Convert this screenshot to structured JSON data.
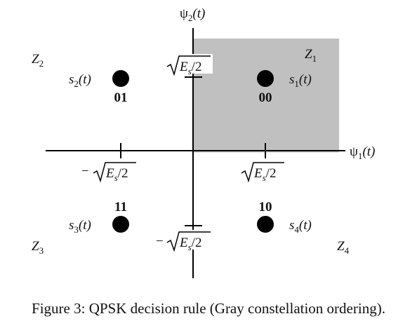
{
  "caption": "Figure 3: QPSK decision rule (Gray constellation ordering).",
  "colors": {
    "region_shade": "#c0c0c0",
    "ink": "#000000"
  },
  "axes": {
    "horizontal": {
      "symbol": "ψ",
      "sub": "1",
      "arg": "(t)"
    },
    "vertical": {
      "symbol": "ψ",
      "sub": "2",
      "arg": "(t)"
    }
  },
  "tick_labels": {
    "pos_x": {
      "sign": "",
      "radicand_E": "E",
      "radicand_sub": "s",
      "radicand_rest": "/2"
    },
    "neg_x": {
      "sign": "−",
      "radicand_E": "E",
      "radicand_sub": "s",
      "radicand_rest": "/2"
    },
    "pos_y": {
      "sign": "",
      "radicand_E": "E",
      "radicand_sub": "s",
      "radicand_rest": "/2"
    },
    "neg_y": {
      "sign": "−",
      "radicand_E": "E",
      "radicand_sub": "s",
      "radicand_rest": "/2"
    }
  },
  "regions": [
    {
      "name": "Z",
      "sub": "1",
      "shaded": true
    },
    {
      "name": "Z",
      "sub": "2",
      "shaded": false
    },
    {
      "name": "Z",
      "sub": "3",
      "shaded": false
    },
    {
      "name": "Z",
      "sub": "4",
      "shaded": false
    }
  ],
  "points": [
    {
      "label": "s",
      "sub": "1",
      "arg": "(t)",
      "bits": "00"
    },
    {
      "label": "s",
      "sub": "2",
      "arg": "(t)",
      "bits": "01"
    },
    {
      "label": "s",
      "sub": "3",
      "arg": "(t)",
      "bits": "11"
    },
    {
      "label": "s",
      "sub": "4",
      "arg": "(t)",
      "bits": "10"
    }
  ]
}
